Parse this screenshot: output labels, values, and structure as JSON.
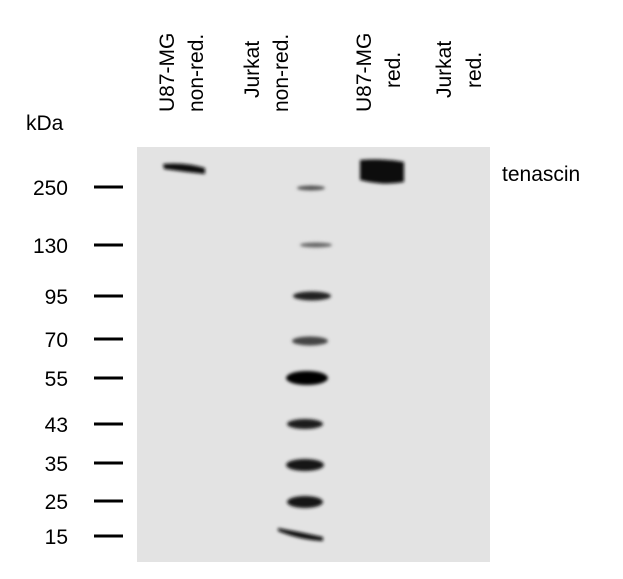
{
  "unit_label": "kDa",
  "lanes": [
    {
      "line1": "U87-MG",
      "line2": "non-red."
    },
    {
      "line1": "Jurkat",
      "line2": "non-red."
    },
    {
      "line1": "U87-MG",
      "line2": "red."
    },
    {
      "line1": "Jurkat",
      "line2": "red."
    }
  ],
  "markers": [
    250,
    130,
    95,
    70,
    55,
    43,
    35,
    25,
    15
  ],
  "band_label": "tenascin"
}
